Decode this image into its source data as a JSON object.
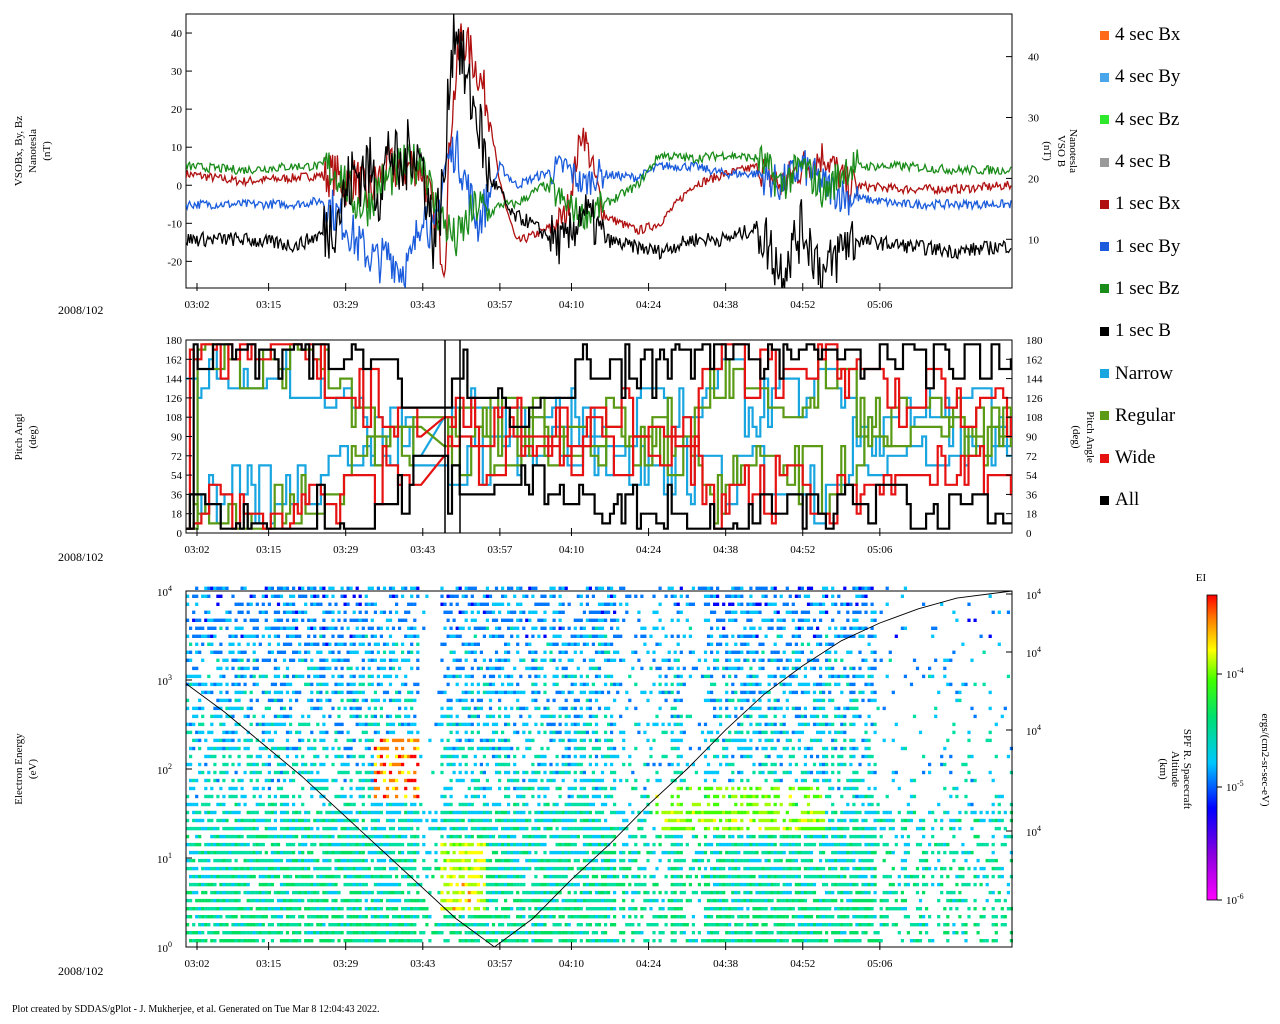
{
  "chart_data": [
    {
      "type": "line",
      "panel": "magnetic-field",
      "ylabel_left": [
        "VSOBx, By, Bz",
        "Nanotesla",
        "(nT)"
      ],
      "ylabel_right": [
        "VSO B",
        "Nanotesla",
        "(nT)"
      ],
      "ylim_left": [
        -27,
        45
      ],
      "yticks_left": [
        40,
        30,
        20,
        10,
        0,
        -10,
        -20
      ],
      "ytick_labels_left": [
        "40",
        "30",
        "20",
        "10",
        "0",
        "-10",
        "-20"
      ],
      "ylim_right": [
        2,
        47
      ],
      "yticks_right": [
        40,
        30,
        20,
        10
      ],
      "ytick_labels_right": [
        "40",
        "30",
        "20",
        "10"
      ],
      "x_time_min": [
        180,
        330
      ],
      "x_ticks_min": [
        182,
        195,
        209,
        223,
        237,
        250,
        264,
        278,
        292,
        306
      ],
      "x_tick_labels": [
        "03:02",
        "03:15",
        "03:29",
        "03:43",
        "03:57",
        "04:10",
        "04:24",
        "04:38",
        "04:52",
        "05:06"
      ],
      "date_label": "2008/102",
      "series": [
        {
          "name": "1 sec Bx",
          "color": "#b01010",
          "t": [
            180,
            190,
            200,
            207,
            209,
            211,
            213,
            215,
            217,
            219,
            221,
            223,
            225,
            227,
            228,
            230,
            233,
            235,
            237,
            240,
            245,
            249,
            252,
            256,
            262,
            266,
            272,
            278,
            284,
            288,
            292,
            296,
            300,
            310,
            320,
            330
          ],
          "values": [
            3,
            1,
            2,
            3,
            0,
            2,
            -3,
            2,
            5,
            3,
            6,
            4,
            -8,
            -20,
            15,
            40,
            30,
            20,
            0,
            -15,
            -12,
            -8,
            15,
            -8,
            -12,
            -10,
            0,
            3,
            5,
            0,
            5,
            8,
            0,
            -1,
            -1,
            0
          ]
        },
        {
          "name": "1 sec By",
          "color": "#1a5cdc",
          "t": [
            180,
            190,
            200,
            205,
            209,
            211,
            213,
            215,
            217,
            219,
            221,
            223,
            225,
            227,
            229,
            231,
            233,
            235,
            237,
            240,
            245,
            249,
            252,
            255,
            262,
            266,
            272,
            278,
            284,
            288,
            292,
            296,
            300,
            310,
            320,
            330
          ],
          "values": [
            -5,
            -5,
            -5,
            -4,
            -10,
            -15,
            -18,
            -20,
            -18,
            -22,
            -20,
            -5,
            -15,
            5,
            10,
            0,
            -10,
            -3,
            5,
            0,
            3,
            5,
            0,
            3,
            2,
            5,
            5,
            3,
            3,
            0,
            5,
            0,
            -3,
            -5,
            -5,
            -5
          ]
        },
        {
          "name": "1 sec Bz",
          "color": "#1a8c1a",
          "t": [
            180,
            190,
            200,
            205,
            208,
            211,
            213,
            215,
            217,
            219,
            221,
            223,
            225,
            227,
            229,
            231,
            233,
            235,
            237,
            240,
            245,
            249,
            252,
            256,
            262,
            266,
            272,
            278,
            284,
            288,
            292,
            296,
            300,
            310,
            320,
            330
          ],
          "values": [
            5,
            4,
            5,
            5,
            3,
            -5,
            -5,
            0,
            2,
            5,
            5,
            8,
            -5,
            -10,
            -15,
            -10,
            -5,
            -8,
            -5,
            -5,
            0,
            -5,
            -8,
            -5,
            0,
            8,
            7,
            8,
            7,
            0,
            5,
            -2,
            5,
            5,
            4,
            4
          ]
        },
        {
          "name": "1 sec B",
          "color": "#000000",
          "t": [
            180,
            190,
            200,
            205,
            208,
            210,
            213,
            215,
            217,
            219,
            221,
            223,
            225,
            227,
            228,
            229,
            231,
            233,
            235,
            237,
            239,
            242,
            245,
            249,
            252,
            256,
            260,
            266,
            272,
            278,
            284,
            288,
            292,
            296,
            300,
            310,
            320,
            330
          ],
          "values": [
            10,
            10,
            9,
            11,
            15,
            20,
            22,
            18,
            25,
            20,
            26,
            22,
            10,
            20,
            40,
            46,
            35,
            30,
            20,
            18,
            14,
            13,
            11,
            9,
            15,
            10,
            9,
            8,
            10,
            10,
            12,
            5,
            12,
            4,
            10,
            9,
            8,
            9
          ]
        }
      ]
    },
    {
      "type": "line",
      "panel": "pitch-angle",
      "ylabel_left": [
        "Pitch Angl",
        "(deg)"
      ],
      "ylabel_right": [
        "Pitch Angle",
        "(deg)"
      ],
      "ylim": [
        0,
        180
      ],
      "yticks": [
        180,
        162,
        144,
        126,
        108,
        90,
        72,
        54,
        36,
        18,
        0
      ],
      "ytick_labels": [
        "180",
        "162",
        "144",
        "126",
        "108",
        "90",
        "72",
        "54",
        "36",
        "18",
        "0"
      ],
      "date_label": "2008/102",
      "series": [
        {
          "name": "Narrow",
          "color": "#19a6e0",
          "t": [
            180,
            190,
            200,
            205,
            210,
            215,
            222,
            226,
            232,
            240,
            246,
            252,
            258,
            264,
            270,
            276,
            282,
            288,
            296,
            304,
            312,
            320,
            330
          ],
          "values": [
            150,
            140,
            150,
            130,
            100,
            90,
            80,
            60,
            70,
            80,
            100,
            110,
            108,
            110,
            120,
            150,
            110,
            130,
            150,
            80,
            75,
            70,
            72
          ]
        },
        {
          "name": "Regular",
          "color": "#5a9a14",
          "t": [
            180,
            190,
            200,
            205,
            210,
            215,
            222,
            226,
            232,
            240,
            246,
            252,
            258,
            264,
            270,
            276,
            282,
            288,
            296,
            304,
            312,
            320,
            330
          ],
          "values": [
            160,
            165,
            160,
            140,
            120,
            90,
            100,
            90,
            100,
            95,
            95,
            80,
            90,
            85,
            80,
            150,
            130,
            120,
            140,
            100,
            100,
            95,
            95
          ]
        },
        {
          "name": "Wide",
          "color": "#e61212",
          "t": [
            180,
            190,
            200,
            205,
            210,
            215,
            222,
            226,
            232,
            240,
            246,
            252,
            258,
            264,
            270,
            276,
            282,
            288,
            296,
            304,
            312,
            320,
            330
          ],
          "values": [
            165,
            170,
            165,
            150,
            140,
            120,
            110,
            100,
            110,
            100,
            100,
            80,
            70,
            60,
            90,
            160,
            150,
            140,
            160,
            130,
            120,
            125,
            120
          ]
        },
        {
          "name": "All",
          "color": "#000000",
          "t": [
            180,
            190,
            200,
            205,
            210,
            215,
            222,
            226,
            232,
            240,
            246,
            252,
            258,
            264,
            270,
            276,
            282,
            288,
            296,
            304,
            312,
            320,
            330
          ],
          "values": [
            175,
            172,
            170,
            160,
            170,
            175,
            120,
            140,
            150,
            110,
            130,
            170,
            160,
            150,
            170,
            175,
            160,
            170,
            175,
            150,
            160,
            170,
            172
          ]
        }
      ]
    },
    {
      "type": "heatmap",
      "panel": "electron-spectrogram",
      "ylabel_left": [
        "Electron Energy",
        "(eV)"
      ],
      "ylabel_right": [
        "SPF R. Spacecraft",
        "Altitude",
        "(km)"
      ],
      "energy_log_range": [
        0,
        4
      ],
      "y_tick_mantissa": "10",
      "y_tick_exponents": [
        "4",
        "3",
        "2",
        "1",
        "0"
      ],
      "right_tick_mantissa": "10",
      "right_tick_exponents": [
        "4",
        "4",
        "4",
        "4"
      ],
      "overlay_altitude_t": [
        180,
        187,
        194,
        201,
        208,
        215,
        222,
        229,
        236,
        243,
        250,
        257,
        264,
        271,
        278,
        285,
        292,
        299,
        306,
        313,
        320,
        330
      ],
      "overlay_altitude_frac": [
        0.74,
        0.66,
        0.57,
        0.48,
        0.38,
        0.28,
        0.18,
        0.08,
        0.0,
        0.08,
        0.19,
        0.29,
        0.4,
        0.5,
        0.61,
        0.71,
        0.79,
        0.86,
        0.91,
        0.95,
        0.98,
        1.0
      ],
      "colorbar": {
        "title": "EI",
        "label": "ergs/(cm2-sr-sec-eV)",
        "tick_mantissa": "10",
        "tick_exponents": [
          "-4",
          "-5",
          "-6"
        ]
      },
      "date_label": "2008/102"
    }
  ],
  "legend": {
    "mag": [
      {
        "label": "4 sec Bx",
        "color": "#ff6a1a"
      },
      {
        "label": "4 sec By",
        "color": "#4aa6ea"
      },
      {
        "label": "4 sec Bz",
        "color": "#2ee82e"
      },
      {
        "label": "4 sec B",
        "color": "#9a9a9a"
      },
      {
        "label": "1 sec Bx",
        "color": "#b01010"
      },
      {
        "label": "1 sec By",
        "color": "#1a5cdc"
      },
      {
        "label": "1 sec Bz",
        "color": "#1a8c1a"
      },
      {
        "label": "1 sec B",
        "color": "#000000"
      }
    ],
    "pitch": [
      {
        "label": "Narrow",
        "color": "#19a6e0"
      },
      {
        "label": "Regular",
        "color": "#5a9a14"
      },
      {
        "label": "Wide",
        "color": "#e61212"
      },
      {
        "label": "All",
        "color": "#000000"
      }
    ]
  },
  "footer": "Plot created by SDDAS/gPlot - J. Mukherjee, et al.  Generated on Tue Mar 8 12:04:43 2022."
}
